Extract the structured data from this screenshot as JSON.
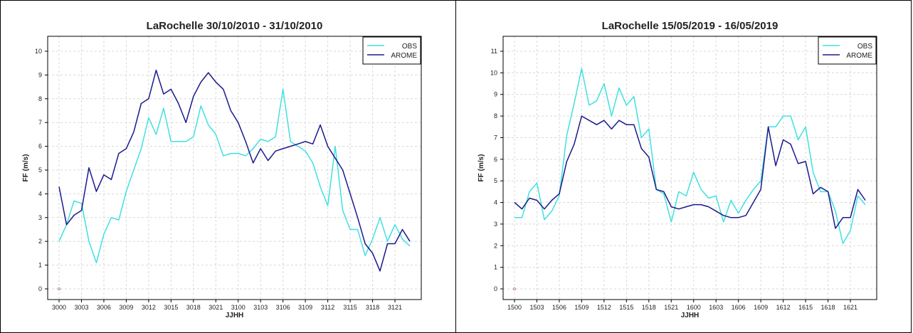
{
  "colors": {
    "obs": "#40e0e0",
    "arome": "#1a1a8c",
    "grid": "#d8d8d8"
  },
  "chart_data": [
    {
      "type": "line",
      "title": "LaRochelle  30/10/2010 - 31/10/2010",
      "xlabel": "JJHH",
      "ylabel": "FF (m/s)",
      "ylim": [
        0,
        10
      ],
      "yticks": [
        "0",
        "1",
        "2",
        "3",
        "4",
        "5",
        "6",
        "7",
        "8",
        "9",
        "10"
      ],
      "xtick_labels": [
        "3000",
        "3003",
        "3006",
        "3009",
        "3012",
        "3015",
        "3018",
        "3021",
        "3100",
        "3103",
        "3106",
        "3109",
        "3112",
        "3115",
        "3118",
        "3121"
      ],
      "n_points": 48,
      "legend_position": "top-right",
      "grid": true,
      "series": [
        {
          "name": "OBS",
          "color": "#40e0e0",
          "values": [
            2.0,
            2.7,
            3.7,
            3.6,
            2.0,
            1.1,
            2.3,
            3.0,
            2.9,
            4.1,
            5.0,
            5.9,
            7.2,
            6.5,
            7.6,
            6.2,
            6.2,
            6.2,
            6.4,
            7.7,
            6.9,
            6.5,
            5.6,
            5.7,
            5.7,
            5.6,
            5.9,
            6.3,
            6.2,
            6.4,
            8.4,
            6.2,
            6.0,
            5.8,
            5.3,
            4.3,
            3.5,
            6.0,
            3.3,
            2.5,
            2.5,
            1.4,
            2.1,
            3.0,
            2.0,
            2.7,
            2.1,
            1.8
          ]
        },
        {
          "name": "AROME",
          "color": "#1a1a8c",
          "values": [
            4.3,
            2.7,
            3.1,
            3.3,
            5.1,
            4.1,
            4.8,
            4.6,
            5.7,
            5.9,
            6.6,
            7.8,
            8.0,
            9.2,
            8.2,
            8.4,
            7.8,
            7.0,
            8.1,
            8.7,
            9.1,
            8.7,
            8.4,
            7.5,
            7.0,
            6.2,
            5.3,
            5.9,
            5.4,
            5.8,
            5.9,
            6.0,
            6.1,
            6.2,
            6.1,
            6.9,
            6.0,
            5.5,
            5.0,
            4.0,
            3.0,
            1.9,
            1.5,
            0.75,
            1.9,
            1.9,
            2.5,
            2.0
          ]
        }
      ]
    },
    {
      "type": "line",
      "title": "LaRochelle  15/05/2019 - 16/05/2019",
      "xlabel": "JJHH",
      "ylabel": "FF (m/s)",
      "ylim": [
        0,
        11
      ],
      "yticks": [
        "0",
        "1",
        "2",
        "3",
        "4",
        "5",
        "6",
        "7",
        "8",
        "9",
        "10",
        "11"
      ],
      "xtick_labels": [
        "1500",
        "1503",
        "1506",
        "1509",
        "1512",
        "1515",
        "1518",
        "1521",
        "1600",
        "1603",
        "1606",
        "1609",
        "1612",
        "1615",
        "1618",
        "1621"
      ],
      "n_points": 48,
      "legend_position": "top-right",
      "grid": true,
      "series": [
        {
          "name": "OBS",
          "color": "#40e0e0",
          "values": [
            3.3,
            3.3,
            4.5,
            4.9,
            3.2,
            3.6,
            4.3,
            7.1,
            8.6,
            10.2,
            8.5,
            8.7,
            9.5,
            8.0,
            9.3,
            8.5,
            8.9,
            7.0,
            7.4,
            4.6,
            4.4,
            3.1,
            4.5,
            4.3,
            5.4,
            4.6,
            4.2,
            4.3,
            3.1,
            4.1,
            3.5,
            4.1,
            4.6,
            5.0,
            7.5,
            7.5,
            8.0,
            8.0,
            6.9,
            7.5,
            5.4,
            4.5,
            4.5,
            3.6,
            2.1,
            2.7,
            4.3,
            3.9
          ]
        },
        {
          "name": "AROME",
          "color": "#1a1a8c",
          "values": [
            4.0,
            3.7,
            4.2,
            4.1,
            3.7,
            4.1,
            4.4,
            5.9,
            6.7,
            8.0,
            7.8,
            7.6,
            7.8,
            7.4,
            7.8,
            7.6,
            7.6,
            6.5,
            6.1,
            4.6,
            4.5,
            3.8,
            3.7,
            3.8,
            3.9,
            3.9,
            3.8,
            3.6,
            3.4,
            3.3,
            3.3,
            3.4,
            4.0,
            4.6,
            7.5,
            5.7,
            6.9,
            6.7,
            5.8,
            5.9,
            4.4,
            4.7,
            4.5,
            2.8,
            3.3,
            3.3,
            4.6,
            4.1
          ]
        }
      ]
    }
  ]
}
